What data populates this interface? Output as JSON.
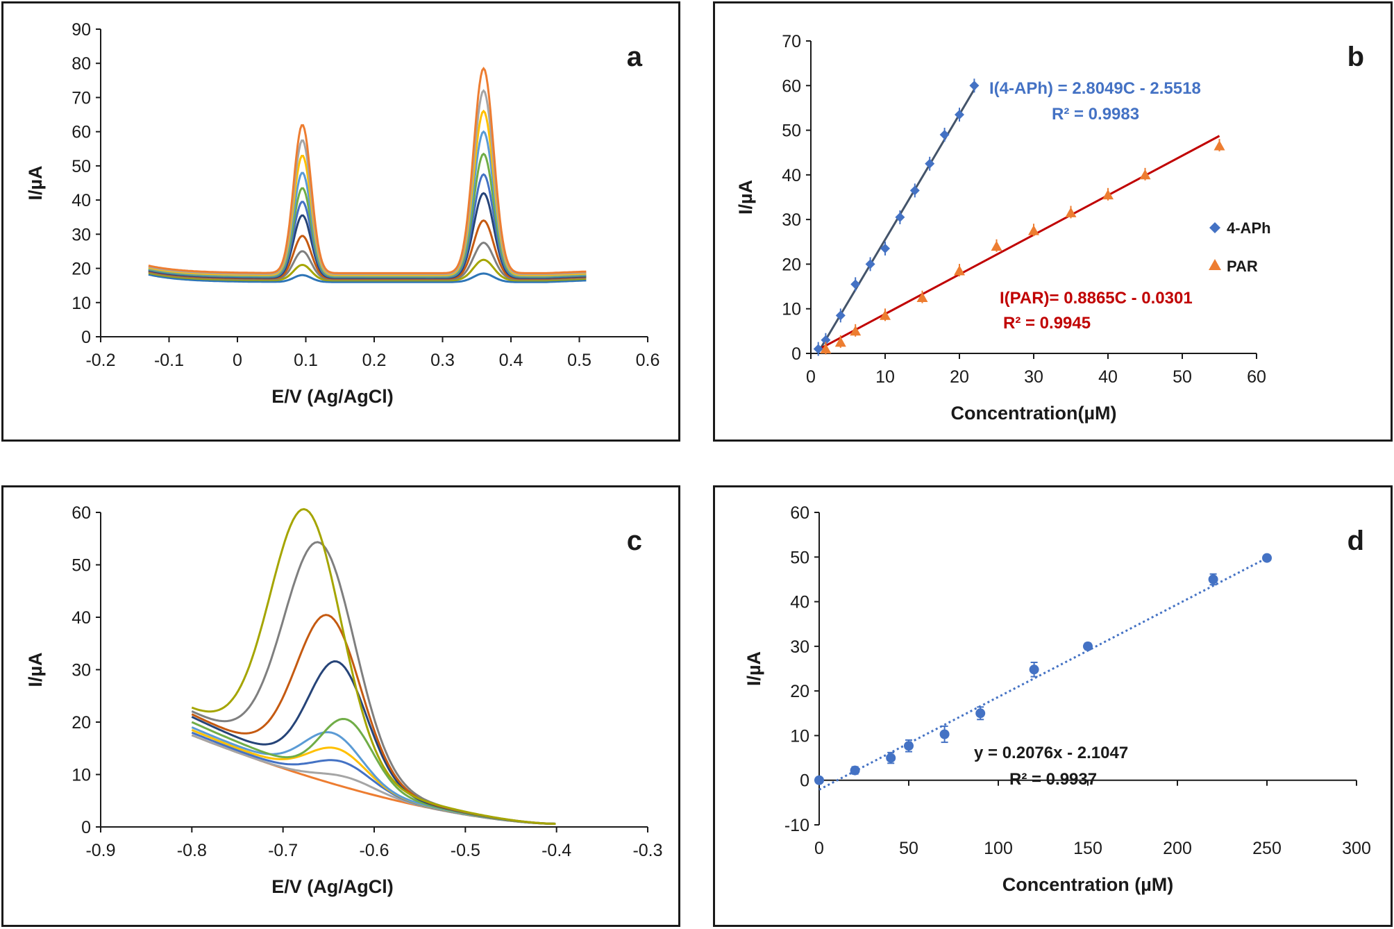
{
  "colors": {
    "axis": "#1a1a1a",
    "blue_series": "#4472C4",
    "dark_fit": "#44546A",
    "orange_series": "#ED7D31",
    "red_fit": "#C00000",
    "curve_palette": [
      "#2E75B6",
      "#A5A500",
      "#7F7F7F",
      "#C55A11",
      "#264478",
      "#4472C4",
      "#70AD47",
      "#5B9BD5",
      "#FFC000",
      "#A5A5A5",
      "#ED7D31"
    ]
  },
  "chart_data": [
    {
      "panel": "a",
      "type": "line",
      "letter": "a",
      "xlabel": "E/V (Ag/AgCl)",
      "ylabel": "I/µA",
      "xlim": [
        -0.2,
        0.6
      ],
      "ylim": [
        0,
        90
      ],
      "xticks": [
        "-0.2",
        "-0.1",
        "0",
        "0.1",
        "0.2",
        "0.3",
        "0.4",
        "0.5",
        "0.6"
      ],
      "yticks": [
        "0",
        "10",
        "20",
        "30",
        "40",
        "50",
        "60",
        "70",
        "80",
        "90"
      ],
      "x_range": [
        -0.13,
        0.51
      ],
      "peak1_x": 0.095,
      "peak2_x": 0.36,
      "series": [
        {
          "base": 16,
          "peak1": 18,
          "peak2": 18.5
        },
        {
          "base": 16.5,
          "peak1": 21,
          "peak2": 22.5
        },
        {
          "base": 16.8,
          "peak1": 25,
          "peak2": 27.5
        },
        {
          "base": 17,
          "peak1": 29.5,
          "peak2": 34
        },
        {
          "base": 17.2,
          "peak1": 35.5,
          "peak2": 42
        },
        {
          "base": 17.4,
          "peak1": 39.5,
          "peak2": 47.5
        },
        {
          "base": 17.6,
          "peak1": 43.5,
          "peak2": 53.5
        },
        {
          "base": 17.8,
          "peak1": 48,
          "peak2": 60
        },
        {
          "base": 18,
          "peak1": 53,
          "peak2": 66
        },
        {
          "base": 18.3,
          "peak1": 57.5,
          "peak2": 72
        },
        {
          "base": 18.6,
          "peak1": 62,
          "peak2": 78.5
        }
      ]
    },
    {
      "panel": "b",
      "type": "scatter",
      "letter": "b",
      "xlabel": "Concentration(µM)",
      "ylabel": "I/µA",
      "xlim": [
        0,
        60
      ],
      "ylim": [
        0,
        70
      ],
      "xticks": [
        "0",
        "10",
        "20",
        "30",
        "40",
        "50",
        "60"
      ],
      "yticks": [
        "0",
        "10",
        "20",
        "30",
        "40",
        "50",
        "60",
        "70"
      ],
      "series": [
        {
          "name": "4-APh",
          "x": [
            1,
            2,
            4,
            6,
            8,
            10,
            12,
            14,
            16,
            18,
            20,
            22
          ],
          "y": [
            1,
            3,
            8.5,
            15.5,
            20,
            23.5,
            30.5,
            36.5,
            42.5,
            49,
            53.5,
            60
          ],
          "fit": {
            "slope": 2.8049,
            "intercept": -2.5518,
            "x_from": 1.2,
            "x_to": 22.3
          },
          "equation": "I(4-APh) = 2.8049C - 2.5518",
          "r2": "R² = 0.9983"
        },
        {
          "name": "PAR",
          "x": [
            2,
            4,
            6,
            10,
            15,
            20,
            25,
            30,
            35,
            40,
            45,
            55
          ],
          "y": [
            1,
            2.5,
            5,
            8.5,
            12.5,
            18.5,
            24,
            27.5,
            31.5,
            35.5,
            40,
            46.5
          ],
          "fit": {
            "slope": 0.8865,
            "intercept": -0.0301,
            "x_from": 1.5,
            "x_to": 55
          },
          "equation": "I(PAR)= 0.8865C - 0.0301",
          "r2": "R² = 0.9945"
        }
      ]
    },
    {
      "panel": "c",
      "type": "line",
      "letter": "c",
      "xlabel": "E/V (Ag/AgCl)",
      "ylabel": "I/µA",
      "xlim": [
        -0.9,
        -0.3
      ],
      "ylim": [
        0,
        60
      ],
      "xticks": [
        "-0.9",
        "-0.8",
        "-0.7",
        "-0.6",
        "-0.5",
        "-0.4",
        "-0.3"
      ],
      "yticks": [
        "0",
        "10",
        "20",
        "30",
        "40",
        "50",
        "60"
      ],
      "x_range": [
        -0.8,
        -0.4
      ],
      "series": [
        {
          "start": 17.5,
          "peak": 0,
          "center": -0.63,
          "width": 0.045
        },
        {
          "start": 17.5,
          "peak": 2,
          "center": -0.63,
          "width": 0.045
        },
        {
          "start": 18,
          "peak": 4.5,
          "center": -0.635,
          "width": 0.045
        },
        {
          "start": 18.5,
          "peak": 6.5,
          "center": -0.64,
          "width": 0.045
        },
        {
          "start": 19,
          "peak": 9,
          "center": -0.645,
          "width": 0.045
        },
        {
          "start": 20,
          "peak": 12,
          "center": -0.63,
          "width": 0.04
        },
        {
          "start": 21,
          "peak": 22,
          "center": -0.64,
          "width": 0.045
        },
        {
          "start": 21.5,
          "peak": 30,
          "center": -0.65,
          "width": 0.05
        },
        {
          "start": 22,
          "peak": 43,
          "center": -0.66,
          "width": 0.055
        },
        {
          "start": 22.5,
          "peak": 48,
          "center": -0.675,
          "width": 0.055
        }
      ]
    },
    {
      "panel": "d",
      "type": "scatter",
      "letter": "d",
      "xlabel": "Concentration  (µM)",
      "ylabel": "I/µA",
      "xlim": [
        0,
        300
      ],
      "ylim": [
        -10,
        60
      ],
      "xticks": [
        "0",
        "50",
        "100",
        "150",
        "200",
        "250",
        "300"
      ],
      "yticks": [
        "-10",
        "0",
        "10",
        "20",
        "30",
        "40",
        "50",
        "60"
      ],
      "series": [
        {
          "name": "data",
          "x": [
            0,
            20,
            40,
            50,
            70,
            90,
            120,
            150,
            220,
            250
          ],
          "y": [
            0,
            2.2,
            5,
            7.7,
            10.3,
            15,
            24.8,
            30,
            45,
            49.8
          ],
          "err": [
            0.6,
            0.8,
            1.2,
            1.3,
            1.8,
            1.4,
            1.6,
            0.7,
            1.2,
            0.5
          ],
          "fit": {
            "slope": 0.2076,
            "intercept": -2.1047,
            "x_from": 0,
            "x_to": 250
          },
          "equation": "y = 0.2076x - 2.1047",
          "r2": "R² = 0.9937"
        }
      ]
    }
  ]
}
